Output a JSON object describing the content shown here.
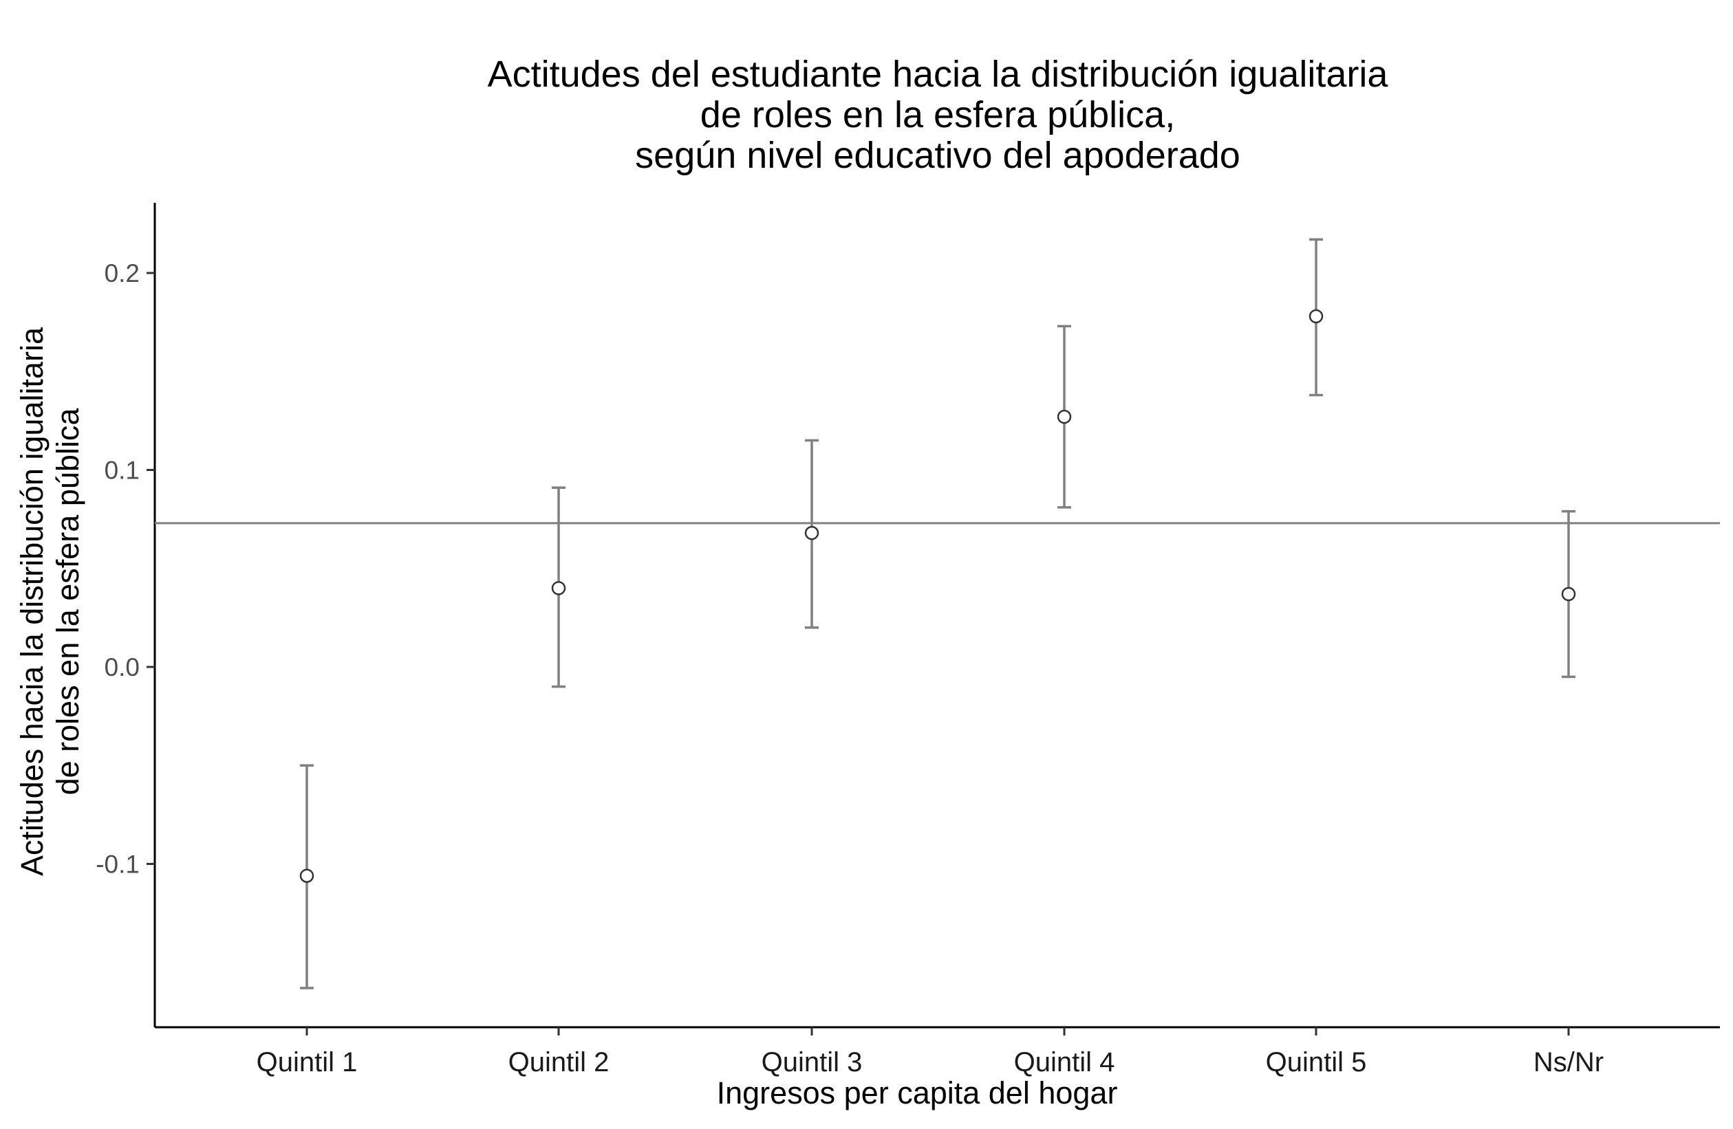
{
  "chart_data": {
    "type": "scatter",
    "subtype": "point-range with error bars",
    "title_lines": [
      "Actitudes del estudiante hacia la distribución igualitaria",
      "de roles en la esfera pública,",
      "según nivel educativo del apoderado"
    ],
    "xlabel": "Ingresos per capita del hogar",
    "ylabel_lines": [
      "Actitudes hacia la distribución igualitaria",
      "de roles en la esfera pública"
    ],
    "categories": [
      "Quintil 1",
      "Quintil 2",
      "Quintil 3",
      "Quintil 4",
      "Quintil 5",
      "Ns/Nr"
    ],
    "points": [
      {
        "category": "Quintil 1",
        "y": -0.106,
        "ymin": -0.163,
        "ymax": -0.05
      },
      {
        "category": "Quintil 2",
        "y": 0.04,
        "ymin": -0.01,
        "ymax": 0.091
      },
      {
        "category": "Quintil 3",
        "y": 0.068,
        "ymin": 0.02,
        "ymax": 0.115
      },
      {
        "category": "Quintil 4",
        "y": 0.127,
        "ymin": 0.081,
        "ymax": 0.173
      },
      {
        "category": "Quintil 5",
        "y": 0.178,
        "ymin": 0.138,
        "ymax": 0.217
      },
      {
        "category": "Ns/Nr",
        "y": 0.037,
        "ymin": -0.005,
        "ymax": 0.079
      }
    ],
    "reference_line_y": 0.073,
    "yticks": [
      -0.1,
      0.0,
      0.1,
      0.2
    ],
    "ytick_labels": [
      "-0.1",
      "0.0",
      "0.1",
      "0.2"
    ],
    "ylim": [
      -0.182,
      0.236
    ],
    "grid": false,
    "legend": "none",
    "colors": {
      "errorbar": "#808080",
      "point_stroke": "#333333",
      "point_fill": "#ffffff",
      "reference_line": "#808080",
      "axis": "#000000"
    }
  }
}
